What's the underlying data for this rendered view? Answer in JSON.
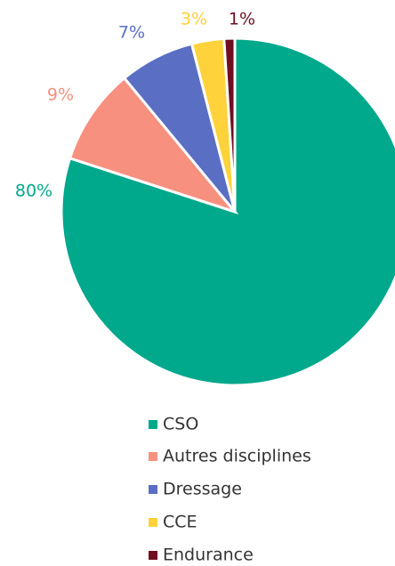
{
  "chart_data": {
    "type": "pie",
    "categories": [
      "CSO",
      "Autres disciplines",
      "Dressage",
      "CCE",
      "Endurance"
    ],
    "values": [
      80,
      9,
      7,
      3,
      1
    ],
    "value_labels": [
      "80%",
      "9%",
      "7%",
      "3%",
      "1%"
    ],
    "colors": [
      "#00a88c",
      "#f7907f",
      "#5a6ec3",
      "#fdd23a",
      "#6e0e20"
    ]
  }
}
